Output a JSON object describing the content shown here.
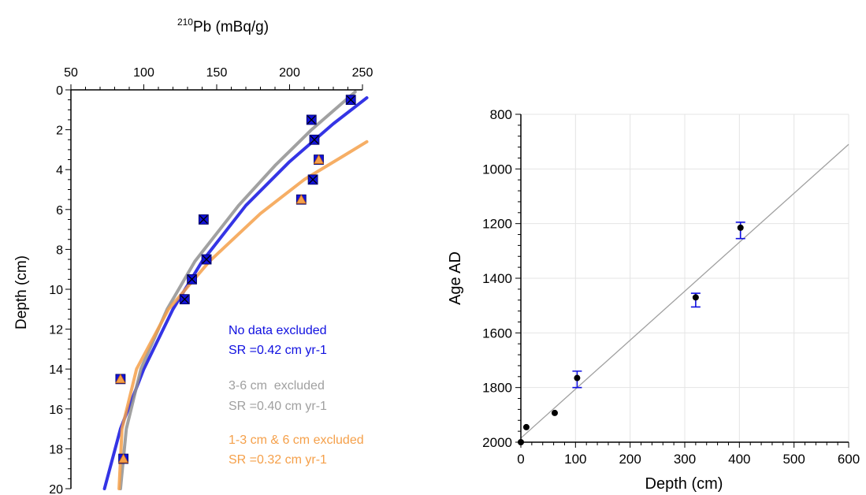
{
  "chart_data": [
    {
      "type": "scatter",
      "title": "",
      "xlabel_main": "Pb (mBq/g)",
      "xlabel_sup": "210",
      "ylabel": "Depth (cm)",
      "xlim": [
        50,
        250
      ],
      "ylim": [
        0,
        20
      ],
      "y_reversed": true,
      "x_axis_position": "top",
      "xticks": [
        "50",
        "100",
        "150",
        "200",
        "250"
      ],
      "yticks": [
        "0",
        "2",
        "4",
        "6",
        "8",
        "10",
        "12",
        "14",
        "16",
        "18",
        "20"
      ],
      "points": [
        {
          "x": 242,
          "y": 0.5,
          "marker": "x"
        },
        {
          "x": 215,
          "y": 1.5,
          "marker": "x"
        },
        {
          "x": 217,
          "y": 2.5,
          "marker": "x"
        },
        {
          "x": 220,
          "y": 3.5,
          "marker": "triangle"
        },
        {
          "x": 216,
          "y": 4.5,
          "marker": "x"
        },
        {
          "x": 208,
          "y": 5.5,
          "marker": "triangle"
        },
        {
          "x": 141,
          "y": 6.5,
          "marker": "x"
        },
        {
          "x": 143,
          "y": 8.5,
          "marker": "x"
        },
        {
          "x": 133,
          "y": 9.5,
          "marker": "x"
        },
        {
          "x": 128,
          "y": 10.5,
          "marker": "x"
        },
        {
          "x": 84,
          "y": 14.5,
          "marker": "triangle"
        },
        {
          "x": 86,
          "y": 18.5,
          "marker": "triangle"
        }
      ],
      "fits": [
        {
          "name": "No data excluded",
          "color": "#1010e0",
          "curve": [
            [
              73,
              20
            ],
            [
              84,
              17
            ],
            [
              100,
              14
            ],
            [
              120,
              11
            ],
            [
              140,
              8.6
            ],
            [
              170,
              5.8
            ],
            [
              200,
              3.6
            ],
            [
              230,
              1.7
            ],
            [
              253,
              0.4
            ]
          ]
        },
        {
          "name": "3-6 cm excluded",
          "color": "#909090",
          "curve": [
            [
              84,
              20
            ],
            [
              88,
              17
            ],
            [
              98,
              14
            ],
            [
              116,
              11
            ],
            [
              135,
              8.6
            ],
            [
              165,
              5.8
            ],
            [
              190,
              3.8
            ],
            [
              215,
              2.0
            ],
            [
              245,
              0.1
            ]
          ]
        },
        {
          "name": "1-3 cm & 6 cm excluded",
          "color": "#f5a04a",
          "curve": [
            [
              83,
              20
            ],
            [
              85,
              17
            ],
            [
              95,
              14
            ],
            [
              117,
              11
            ],
            [
              145,
              8.6
            ],
            [
              180,
              6.2
            ],
            [
              210,
              4.5
            ],
            [
              235,
              3.4
            ],
            [
              253,
              2.6
            ]
          ]
        }
      ],
      "annotations": [
        {
          "title": "No data excluded",
          "sr": "SR =0.42 cm yr-1",
          "color": "#1010e0"
        },
        {
          "title": "3-6 cm  excluded",
          "sr": "SR =0.40 cm yr-1",
          "color": "#a0a0a0"
        },
        {
          "title": "1-3 cm & 6 cm excluded",
          "sr": "SR =0.32 cm yr-1",
          "color": "#f5a04a"
        }
      ]
    },
    {
      "type": "scatter",
      "title": "",
      "xlabel": "Depth (cm)",
      "ylabel": "Age AD",
      "xlim": [
        0,
        600
      ],
      "ylim": [
        800,
        2000
      ],
      "y_reversed": true,
      "grid": true,
      "xticks": [
        "0",
        "100",
        "200",
        "300",
        "400",
        "500",
        "600"
      ],
      "yticks": [
        "800",
        "1000",
        "1200",
        "1400",
        "1600",
        "1800",
        "2000"
      ],
      "points": [
        {
          "x": 0,
          "y": 2000
        },
        {
          "x": 10,
          "y": 1945
        },
        {
          "x": 62,
          "y": 1893
        },
        {
          "x": 103,
          "y": 1765,
          "err_low": 1740,
          "err_high": 1800
        },
        {
          "x": 320,
          "y": 1470,
          "err_low": 1455,
          "err_high": 1505
        },
        {
          "x": 402,
          "y": 1215,
          "err_low": 1195,
          "err_high": 1255
        }
      ],
      "trendline": [
        [
          0,
          1985
        ],
        [
          600,
          910
        ]
      ],
      "trendline_color": "#a0a0a0",
      "error_color": "#1010e0"
    }
  ]
}
